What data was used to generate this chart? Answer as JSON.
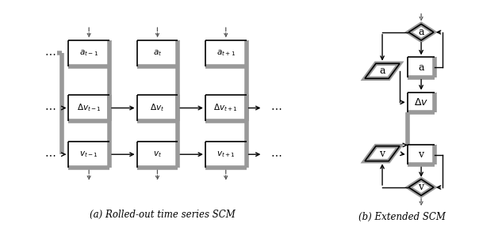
{
  "fig_width": 6.04,
  "fig_height": 3.06,
  "bg_color": "#ffffff",
  "gray_color": "#999999",
  "black_color": "#000000",
  "dashed_color": "#555555",
  "caption_a": "(a) Rolled-out time series SCM",
  "caption_b": "(b) Extended SCM",
  "cols": [
    1.7,
    4.2,
    6.7
  ],
  "rows": [
    6.2,
    4.2,
    2.5
  ],
  "bw": 1.5,
  "bh": 0.95,
  "gray_lw": 4.0,
  "black_lw": 1.2,
  "arrow_lw": 1.0
}
